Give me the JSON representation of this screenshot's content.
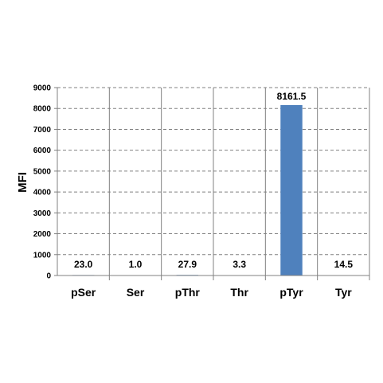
{
  "chart_data": {
    "type": "bar",
    "title": "",
    "xlabel": "",
    "ylabel": "MFI",
    "categories": [
      "pSer",
      "Ser",
      "pThr",
      "Thr",
      "pTyr",
      "Tyr"
    ],
    "values": [
      23.0,
      1.0,
      27.9,
      3.3,
      8161.5,
      14.5
    ],
    "data_labels": [
      "23.0",
      "1.0",
      "27.9",
      "3.3",
      "8161.5",
      "14.5"
    ],
    "ylim": [
      0,
      9000
    ],
    "yticks": [
      0,
      1000,
      2000,
      3000,
      4000,
      5000,
      6000,
      7000,
      8000,
      9000
    ],
    "grid": true,
    "legend": "none",
    "colors": {
      "bar": "#4F81BD",
      "grid": "#808080",
      "axis": "#808080"
    }
  }
}
